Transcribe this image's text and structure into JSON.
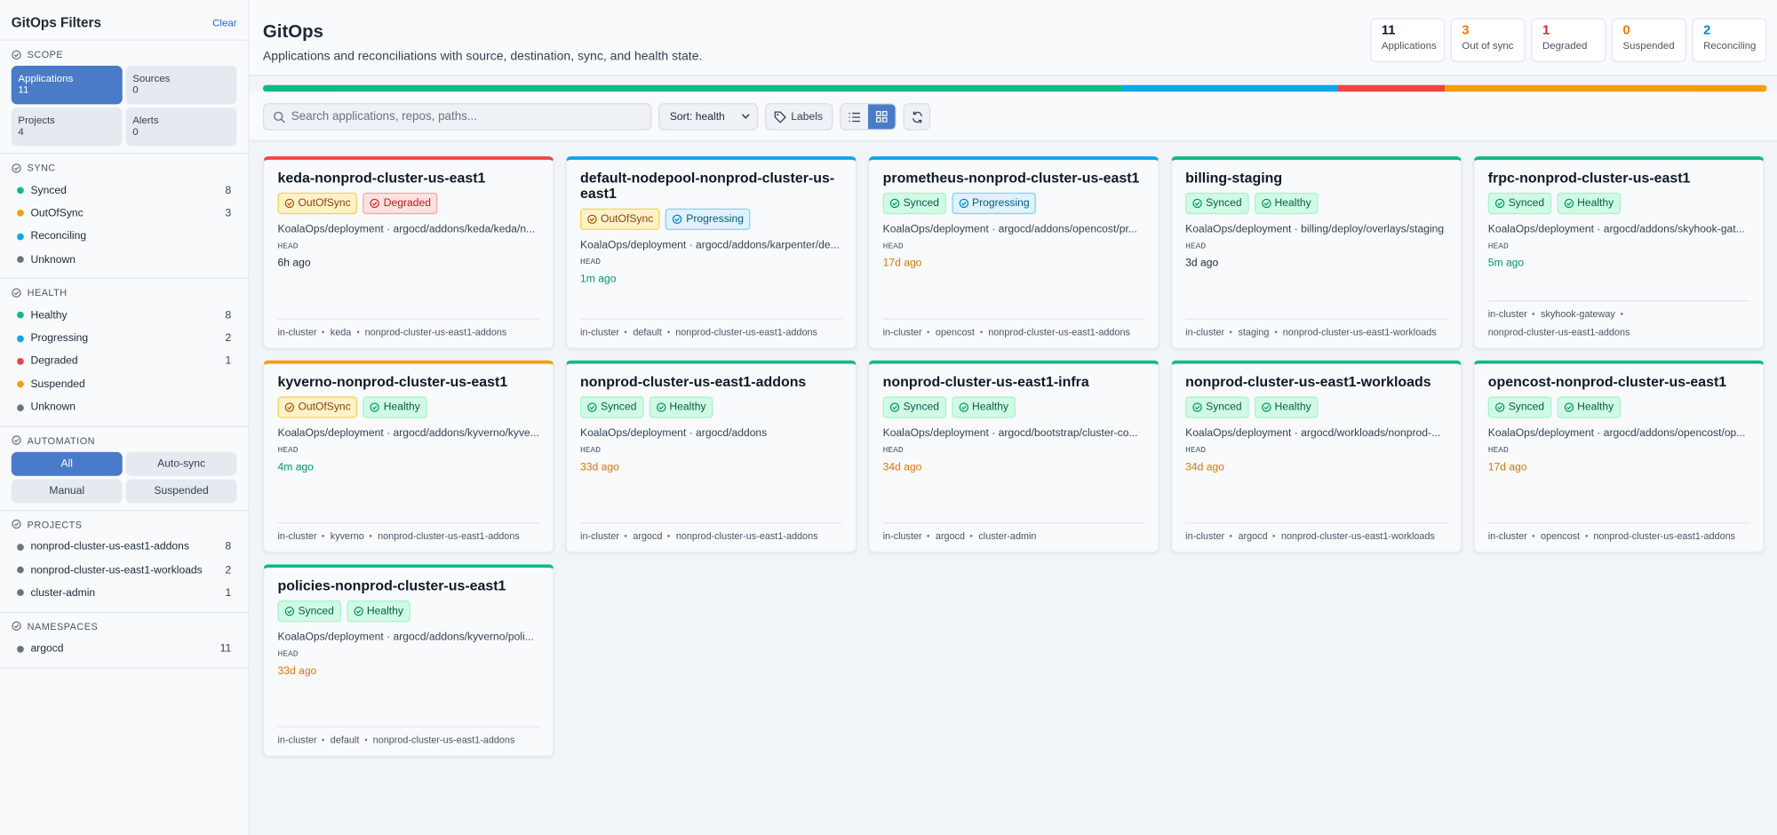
{
  "sidebar": {
    "title": "GitOps Filters",
    "clear": "Clear",
    "scope": {
      "label": "SCOPE",
      "selected": 0,
      "items": [
        {
          "name": "Applications",
          "count": 11
        },
        {
          "name": "Sources",
          "count": 0
        },
        {
          "name": "Projects",
          "count": 4
        },
        {
          "name": "Alerts",
          "count": 0
        }
      ]
    },
    "sync": {
      "label": "SYNC",
      "items": [
        {
          "name": "Synced",
          "count": 8,
          "color": "#10b981"
        },
        {
          "name": "OutOfSync",
          "count": 3,
          "color": "#f59e0b"
        },
        {
          "name": "Reconciling",
          "color": "#0ea5e9"
        },
        {
          "name": "Unknown",
          "color": "#6b7280"
        }
      ]
    },
    "health": {
      "label": "HEALTH",
      "items": [
        {
          "name": "Healthy",
          "count": 8,
          "color": "#10b981"
        },
        {
          "name": "Progressing",
          "count": 2,
          "color": "#0ea5e9"
        },
        {
          "name": "Degraded",
          "count": 1,
          "color": "#ef4444"
        },
        {
          "name": "Suspended",
          "color": "#f59e0b"
        },
        {
          "name": "Unknown",
          "color": "#6b7280"
        }
      ]
    },
    "automation": {
      "label": "AUTOMATION",
      "selected": 0,
      "options": [
        "All",
        "Auto-sync",
        "Manual",
        "Suspended"
      ]
    },
    "projects": {
      "label": "PROJECTS",
      "items": [
        {
          "name": "nonprod-cluster-us-east1-addons",
          "count": 8,
          "color": "#6b7280"
        },
        {
          "name": "nonprod-cluster-us-east1-workloads",
          "count": 2,
          "color": "#6b7280"
        },
        {
          "name": "cluster-admin",
          "count": 1,
          "color": "#6b7280"
        }
      ]
    },
    "namespaces": {
      "label": "NAMESPACES",
      "items": [
        {
          "name": "argocd",
          "count": 11,
          "color": "#6b7280"
        }
      ]
    }
  },
  "header": {
    "title": "GitOps",
    "subtitle": "Applications and reconciliations with source, destination, sync, and health state.",
    "stats": [
      {
        "value": 11,
        "label": "Applications",
        "color": "#111827"
      },
      {
        "value": 3,
        "label": "Out of sync",
        "color": "#ea7a0c"
      },
      {
        "value": 1,
        "label": "Degraded",
        "color": "#dc2626"
      },
      {
        "value": 0,
        "label": "Suspended",
        "color": "#ea7a0c"
      },
      {
        "value": 2,
        "label": "Reconciling",
        "color": "#0284c7"
      }
    ]
  },
  "toolbar": {
    "search_placeholder": "Search applications, repos, paths...",
    "sort": "Sort: health",
    "labels": "Labels"
  },
  "cards": [
    {
      "name": "keda-nonprod-cluster-us-east1",
      "accent": "#ef4444",
      "badges": [
        {
          "label": "OutOfSync",
          "tone": "warn"
        },
        {
          "label": "Degraded",
          "tone": "danger"
        }
      ],
      "source": "KoalaOps/deployment · argocd/addons/keda/keda/n...",
      "revision": "HEAD",
      "age": "6h ago",
      "age_color": "#1f2937",
      "destination": [
        "in-cluster",
        "keda",
        "nonprod-cluster-us-east1-addons"
      ]
    },
    {
      "name": "default-nodepool-nonprod-cluster-us-east1",
      "accent": "#0ea5e9",
      "badges": [
        {
          "label": "OutOfSync",
          "tone": "warn"
        },
        {
          "label": "Progressing",
          "tone": "info"
        }
      ],
      "source": "KoalaOps/deployment · argocd/addons/karpenter/de...",
      "revision": "HEAD",
      "age": "1m ago",
      "age_color": "#059669",
      "destination": [
        "in-cluster",
        "default",
        "nonprod-cluster-us-east1-addons"
      ]
    },
    {
      "name": "prometheus-nonprod-cluster-us-east1",
      "accent": "#0ea5e9",
      "badges": [
        {
          "label": "Synced",
          "tone": "ok"
        },
        {
          "label": "Progressing",
          "tone": "info"
        }
      ],
      "source": "KoalaOps/deployment · argocd/addons/opencost/pr...",
      "revision": "HEAD",
      "age": "17d ago",
      "age_color": "#d97706",
      "destination": [
        "in-cluster",
        "opencost",
        "nonprod-cluster-us-east1-addons"
      ]
    },
    {
      "name": "billing-staging",
      "accent": "#10b981",
      "badges": [
        {
          "label": "Synced",
          "tone": "ok"
        },
        {
          "label": "Healthy",
          "tone": "ok"
        }
      ],
      "source": "KoalaOps/deployment · billing/deploy/overlays/staging",
      "revision": "HEAD",
      "age": "3d ago",
      "age_color": "#1f2937",
      "destination": [
        "in-cluster",
        "staging",
        "nonprod-cluster-us-east1-workloads"
      ]
    },
    {
      "name": "frpc-nonprod-cluster-us-east1",
      "accent": "#10b981",
      "badges": [
        {
          "label": "Synced",
          "tone": "ok"
        },
        {
          "label": "Healthy",
          "tone": "ok"
        }
      ],
      "source": "KoalaOps/deployment · argocd/addons/skyhook-gat...",
      "revision": "HEAD",
      "age": "5m ago",
      "age_color": "#059669",
      "destination": [
        "in-cluster",
        "skyhook-gateway",
        "nonprod-cluster-us-east1-addons"
      ]
    },
    {
      "name": "kyverno-nonprod-cluster-us-east1",
      "accent": "#f59e0b",
      "badges": [
        {
          "label": "OutOfSync",
          "tone": "warn"
        },
        {
          "label": "Healthy",
          "tone": "ok"
        }
      ],
      "source": "KoalaOps/deployment · argocd/addons/kyverno/kyve...",
      "revision": "HEAD",
      "age": "4m ago",
      "age_color": "#059669",
      "destination": [
        "in-cluster",
        "kyverno",
        "nonprod-cluster-us-east1-addons"
      ]
    },
    {
      "name": "nonprod-cluster-us-east1-addons",
      "accent": "#10b981",
      "badges": [
        {
          "label": "Synced",
          "tone": "ok"
        },
        {
          "label": "Healthy",
          "tone": "ok"
        }
      ],
      "source": "KoalaOps/deployment · argocd/addons",
      "revision": "HEAD",
      "age": "33d ago",
      "age_color": "#d97706",
      "destination": [
        "in-cluster",
        "argocd",
        "nonprod-cluster-us-east1-addons"
      ]
    },
    {
      "name": "nonprod-cluster-us-east1-infra",
      "accent": "#10b981",
      "badges": [
        {
          "label": "Synced",
          "tone": "ok"
        },
        {
          "label": "Healthy",
          "tone": "ok"
        }
      ],
      "source": "KoalaOps/deployment · argocd/bootstrap/cluster-co...",
      "revision": "HEAD",
      "age": "34d ago",
      "age_color": "#d97706",
      "destination": [
        "in-cluster",
        "argocd",
        "cluster-admin"
      ]
    },
    {
      "name": "nonprod-cluster-us-east1-workloads",
      "accent": "#10b981",
      "badges": [
        {
          "label": "Synced",
          "tone": "ok"
        },
        {
          "label": "Healthy",
          "tone": "ok"
        }
      ],
      "source": "KoalaOps/deployment · argocd/workloads/nonprod-...",
      "revision": "HEAD",
      "age": "34d ago",
      "age_color": "#d97706",
      "destination": [
        "in-cluster",
        "argocd",
        "nonprod-cluster-us-east1-workloads"
      ]
    },
    {
      "name": "opencost-nonprod-cluster-us-east1",
      "accent": "#10b981",
      "badges": [
        {
          "label": "Synced",
          "tone": "ok"
        },
        {
          "label": "Healthy",
          "tone": "ok"
        }
      ],
      "source": "KoalaOps/deployment · argocd/addons/opencost/op...",
      "revision": "HEAD",
      "age": "17d ago",
      "age_color": "#d97706",
      "destination": [
        "in-cluster",
        "opencost",
        "nonprod-cluster-us-east1-addons"
      ]
    },
    {
      "name": "policies-nonprod-cluster-us-east1",
      "accent": "#10b981",
      "badges": [
        {
          "label": "Synced",
          "tone": "ok"
        },
        {
          "label": "Healthy",
          "tone": "ok"
        }
      ],
      "source": "KoalaOps/deployment · argocd/addons/kyverno/poli...",
      "revision": "HEAD",
      "age": "33d ago",
      "age_color": "#d97706",
      "destination": [
        "in-cluster",
        "default",
        "nonprod-cluster-us-east1-addons"
      ]
    }
  ]
}
